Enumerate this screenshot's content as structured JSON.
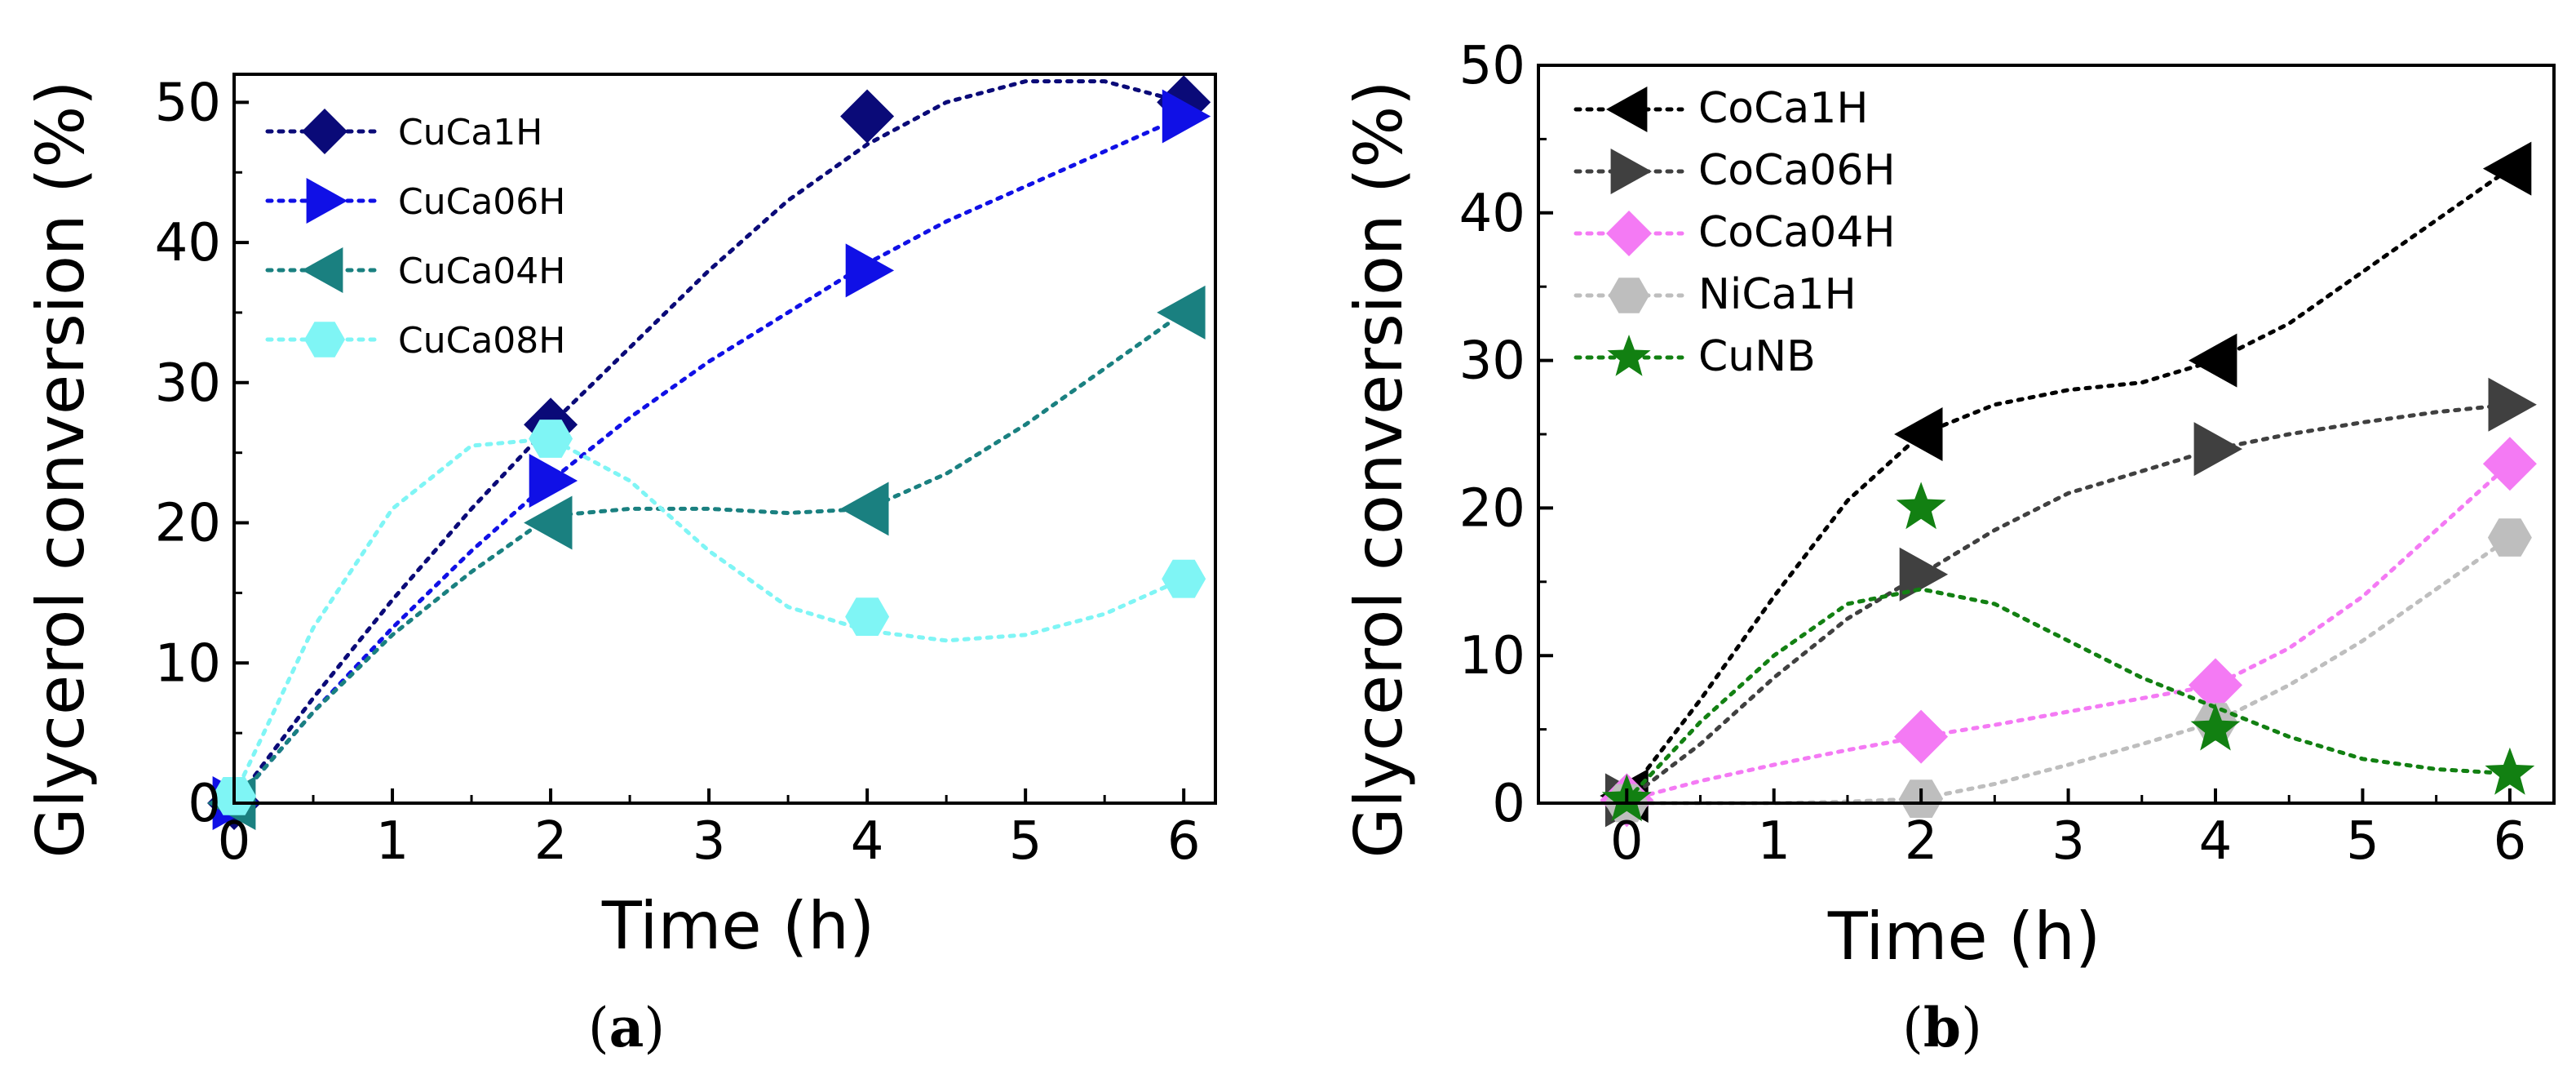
{
  "figure": {
    "panel_a_caption": {
      "open": "(",
      "letter": "a",
      "close": ")"
    },
    "panel_b_caption": {
      "open": "(",
      "letter": "b",
      "close": ")"
    }
  },
  "chart_data": [
    {
      "id": "a",
      "type": "line",
      "xlabel": "Time (h)",
      "ylabel": "Glycerol conversion (%)",
      "xlim": [
        0,
        6.2
      ],
      "ylim": [
        0,
        52
      ],
      "xticks": [
        0,
        1,
        2,
        3,
        4,
        5,
        6
      ],
      "yticks": [
        0,
        10,
        20,
        30,
        40,
        50
      ],
      "legend_position": "top-left",
      "series": [
        {
          "name": "CuCa1H",
          "color": "#0a0a78",
          "marker": "diamond",
          "x": [
            0,
            2,
            4,
            6
          ],
          "y": [
            0,
            27,
            49,
            50
          ],
          "fit": [
            [
              0,
              0
            ],
            [
              0.5,
              7.5
            ],
            [
              1,
              14.5
            ],
            [
              1.5,
              21
            ],
            [
              2,
              27
            ],
            [
              2.5,
              32.5
            ],
            [
              3,
              38
            ],
            [
              3.5,
              43
            ],
            [
              4,
              47
            ],
            [
              4.5,
              50
            ],
            [
              5,
              51.5
            ],
            [
              5.5,
              51.5
            ],
            [
              6,
              50
            ]
          ]
        },
        {
          "name": "CuCa06H",
          "color": "#1010e6",
          "marker": "triangle-right",
          "x": [
            0,
            2,
            4,
            6
          ],
          "y": [
            0,
            23,
            38,
            49
          ],
          "fit": [
            [
              0,
              0
            ],
            [
              0.5,
              6.5
            ],
            [
              1,
              12.5
            ],
            [
              1.5,
              18
            ],
            [
              2,
              23
            ],
            [
              2.5,
              27.5
            ],
            [
              3,
              31.5
            ],
            [
              3.5,
              35
            ],
            [
              4,
              38.5
            ],
            [
              4.5,
              41.5
            ],
            [
              5,
              44
            ],
            [
              5.5,
              46.5
            ],
            [
              6,
              49
            ]
          ]
        },
        {
          "name": "CuCa04H",
          "color": "#1a8080",
          "marker": "triangle-left",
          "x": [
            0,
            2,
            4,
            6
          ],
          "y": [
            0,
            20,
            21,
            35
          ],
          "fit": [
            [
              0,
              0
            ],
            [
              0.5,
              6.5
            ],
            [
              1,
              12
            ],
            [
              1.5,
              16.5
            ],
            [
              2,
              20.5
            ],
            [
              2.5,
              21
            ],
            [
              3,
              21
            ],
            [
              3.5,
              20.7
            ],
            [
              4,
              21
            ],
            [
              4.5,
              23.5
            ],
            [
              5,
              27
            ],
            [
              5.5,
              31
            ],
            [
              6,
              35
            ]
          ]
        },
        {
          "name": "CuCa08H",
          "color": "#7ff5f5",
          "marker": "hexagon",
          "x": [
            0,
            2,
            4,
            6
          ],
          "y": [
            0.5,
            26,
            13.3,
            16
          ],
          "fit": [
            [
              0,
              0.5
            ],
            [
              0.5,
              12.5
            ],
            [
              1,
              21
            ],
            [
              1.5,
              25.5
            ],
            [
              2,
              26
            ],
            [
              2.5,
              23
            ],
            [
              3,
              18
            ],
            [
              3.5,
              14
            ],
            [
              4,
              12.3
            ],
            [
              4.5,
              11.6
            ],
            [
              5,
              12
            ],
            [
              5.5,
              13.5
            ],
            [
              6,
              16
            ]
          ]
        }
      ]
    },
    {
      "id": "b",
      "type": "line",
      "xlabel": "Time (h)",
      "ylabel": "Glycerol conversion (%)",
      "xlim": [
        -0.6,
        6.3
      ],
      "ylim": [
        0,
        50
      ],
      "xticks": [
        0,
        1,
        2,
        3,
        4,
        5,
        6
      ],
      "yticks": [
        0,
        10,
        20,
        30,
        40,
        50
      ],
      "legend_position": "top-left",
      "series": [
        {
          "name": "CoCa1H",
          "color": "#000000",
          "marker": "triangle-left",
          "x": [
            0,
            2,
            4,
            6
          ],
          "y": [
            0.5,
            25,
            30,
            43
          ],
          "fit": [
            [
              0,
              0.5
            ],
            [
              0.5,
              7
            ],
            [
              1,
              14
            ],
            [
              1.5,
              20.5
            ],
            [
              2,
              25
            ],
            [
              2.5,
              27
            ],
            [
              3,
              28
            ],
            [
              3.5,
              28.5
            ],
            [
              4,
              30
            ],
            [
              4.5,
              32.5
            ],
            [
              5,
              36
            ],
            [
              5.5,
              39.5
            ],
            [
              6,
              43
            ]
          ]
        },
        {
          "name": "CoCa06H",
          "color": "#404040",
          "marker": "triangle-right",
          "x": [
            0,
            2,
            4,
            6
          ],
          "y": [
            0.2,
            15.5,
            24,
            27
          ],
          "fit": [
            [
              0,
              0.2
            ],
            [
              0.5,
              4
            ],
            [
              1,
              8.5
            ],
            [
              1.5,
              12.5
            ],
            [
              2,
              15.5
            ],
            [
              2.5,
              18.5
            ],
            [
              3,
              21
            ],
            [
              3.5,
              22.5
            ],
            [
              4,
              24
            ],
            [
              4.5,
              25
            ],
            [
              5,
              25.8
            ],
            [
              5.5,
              26.5
            ],
            [
              6,
              27
            ]
          ]
        },
        {
          "name": "CoCa04H",
          "color": "#f47af4",
          "marker": "diamond",
          "x": [
            0,
            2,
            4,
            6
          ],
          "y": [
            0.2,
            4.5,
            8,
            23
          ],
          "fit": [
            [
              0,
              0.2
            ],
            [
              0.5,
              1.5
            ],
            [
              1,
              2.6
            ],
            [
              1.5,
              3.6
            ],
            [
              2,
              4.5
            ],
            [
              2.5,
              5.3
            ],
            [
              3,
              6.2
            ],
            [
              3.5,
              7.1
            ],
            [
              4,
              8
            ],
            [
              4.5,
              10.5
            ],
            [
              5,
              14
            ],
            [
              5.5,
              18.5
            ],
            [
              6,
              23
            ]
          ]
        },
        {
          "name": "NiCa1H",
          "color": "#bebebe",
          "marker": "hexagon",
          "x": [
            0,
            2,
            4,
            6
          ],
          "y": [
            0,
            0.3,
            5.5,
            18
          ],
          "fit": [
            [
              0,
              0
            ],
            [
              0.5,
              0
            ],
            [
              1,
              0
            ],
            [
              1.5,
              0.1
            ],
            [
              2,
              0.3
            ],
            [
              2.5,
              1.3
            ],
            [
              3,
              2.6
            ],
            [
              3.5,
              4
            ],
            [
              4,
              5.5
            ],
            [
              4.5,
              8
            ],
            [
              5,
              11
            ],
            [
              5.5,
              14.5
            ],
            [
              6,
              18
            ]
          ]
        },
        {
          "name": "CuNB",
          "color": "#128012",
          "marker": "star",
          "x": [
            0,
            2,
            4,
            6
          ],
          "y": [
            0.2,
            20,
            5,
            2
          ],
          "fit": [
            [
              0,
              0.2
            ],
            [
              0.5,
              5.5
            ],
            [
              1,
              10
            ],
            [
              1.5,
              13.5
            ],
            [
              2,
              14.5
            ],
            [
              2.5,
              13.5
            ],
            [
              3,
              11
            ],
            [
              3.5,
              8.5
            ],
            [
              4,
              6.5
            ],
            [
              4.5,
              4.5
            ],
            [
              5,
              3
            ],
            [
              5.5,
              2.3
            ],
            [
              6,
              2
            ]
          ]
        }
      ]
    }
  ]
}
